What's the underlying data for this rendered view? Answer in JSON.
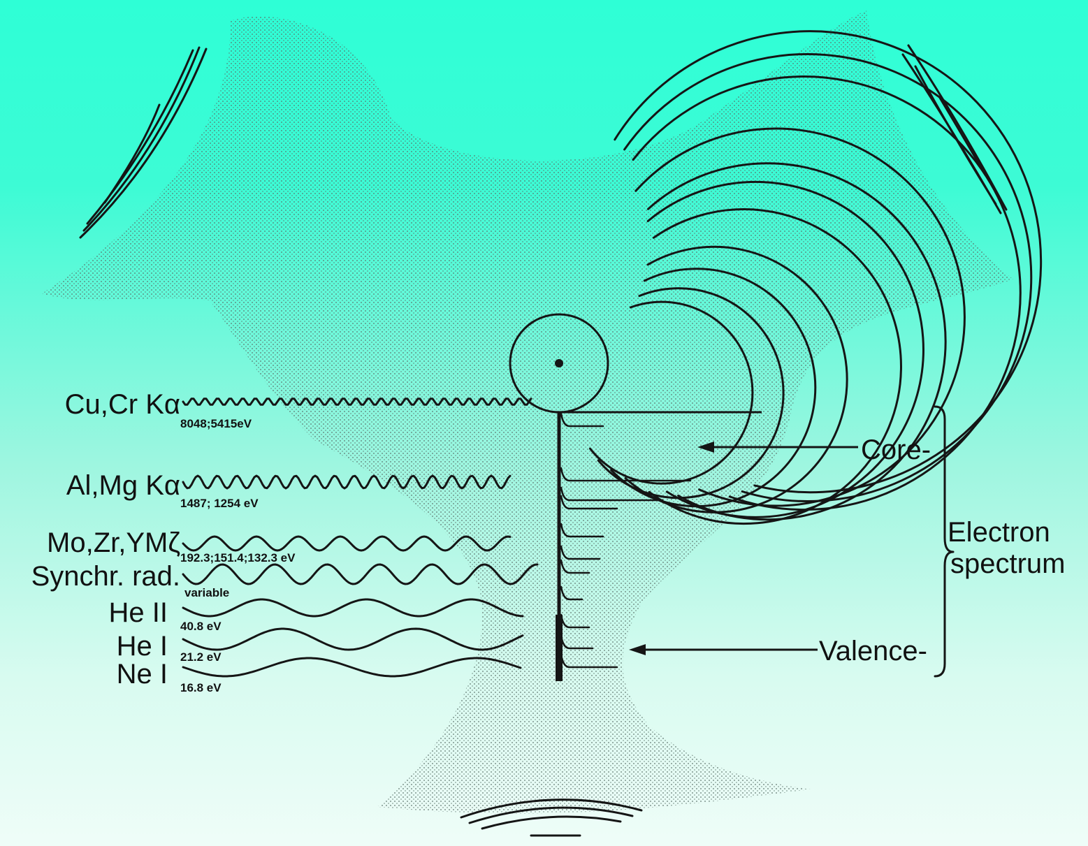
{
  "sources": [
    {
      "name": "Cu,Cr Kα",
      "energy": "8048;5415eV"
    },
    {
      "name": "Al,Mg Kα",
      "energy": "1487; 1254 eV"
    },
    {
      "name": "Mo,Zr,YMζ",
      "energy": "192.3;151.4;132.3 eV"
    },
    {
      "name": "Synchr. rad.",
      "energy": "variable"
    },
    {
      "name": "He II",
      "energy": "40.8 eV"
    },
    {
      "name": "He I",
      "energy": "21.2 eV"
    },
    {
      "name": "Ne I",
      "energy": "16.8 eV"
    }
  ],
  "spectrum": {
    "core_label": "Core-",
    "valence_label": "Valence-",
    "title_line1": "Electron",
    "title_line2": "spectrum"
  },
  "colors": {
    "background_top": "#2effd6",
    "background_bottom": "#effdf8",
    "ink": "#151515",
    "stipple": "#5a6f68"
  }
}
